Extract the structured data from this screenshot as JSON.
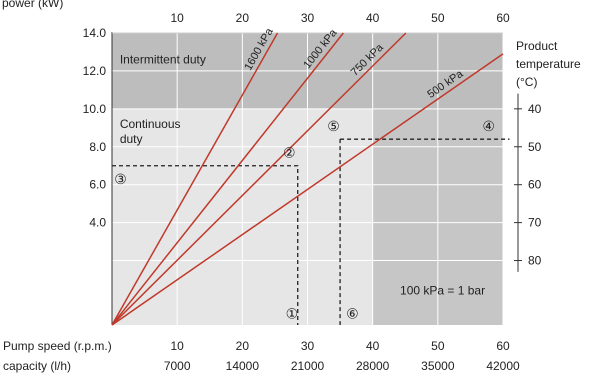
{
  "chart_data": {
    "type": "line",
    "ylabel": "power (kW)",
    "yticks": [
      4.0,
      6.0,
      8.0,
      10.0,
      12.0,
      14.0
    ],
    "ylim": [
      -1.4,
      14.0
    ],
    "top_axis_ticks": [
      10,
      20,
      30,
      40,
      50,
      60
    ],
    "xlim": [
      0,
      60
    ],
    "bottom_rows": [
      {
        "label": "Pump speed (r.p.m.)",
        "values": [
          "10",
          "20",
          "30",
          "40",
          "50",
          "60"
        ]
      },
      {
        "label": "capacity (l/h)",
        "values": [
          "7000",
          "14000",
          "21000",
          "28000",
          "35000",
          "42000"
        ]
      }
    ],
    "right_axis": {
      "label_lines": [
        "Product",
        "temperature",
        "(°C)"
      ],
      "ticks": [
        {
          "label": "40",
          "y": 10.0
        },
        {
          "label": "50",
          "y": 8.0
        },
        {
          "label": "60",
          "y": 6.0
        },
        {
          "label": "70",
          "y": 4.0
        },
        {
          "label": "80",
          "y": 2.0
        }
      ]
    },
    "regions": [
      {
        "name": "Intermittent duty",
        "label_lines": [
          "Intermittent duty"
        ],
        "y_from": 10.0,
        "y_to": 14.0,
        "color": "#bdbdbd"
      },
      {
        "name": "Continuous duty",
        "label_lines": [
          "Continuous",
          "duty"
        ],
        "y_from": 0,
        "y_to": 10.0,
        "color": "#e6e6e6"
      },
      {
        "name": "High temperature zone",
        "label_lines": [],
        "x_from": 40,
        "y_from": -1.4,
        "y_to": 10.0,
        "color": "#c6c6c6"
      }
    ],
    "series": [
      {
        "name": "1600 kPa",
        "label": "1600 kPa",
        "x": [
          0,
          25.4
        ],
        "y": [
          -1.4,
          14.0
        ],
        "color": "#c0392b"
      },
      {
        "name": "1000 kPa",
        "label": "1000 kPa",
        "x": [
          0,
          35.5
        ],
        "y": [
          -1.4,
          14.0
        ],
        "color": "#c0392b"
      },
      {
        "name": "750 kPa",
        "label": "750 kPa",
        "x": [
          0,
          45.1
        ],
        "y": [
          -1.4,
          14.0
        ],
        "color": "#c0392b"
      },
      {
        "name": "500 kPa",
        "label": "500 kPa",
        "x": [
          0,
          60.0
        ],
        "y": [
          -1.4,
          12.9
        ],
        "color": "#c0392b"
      }
    ],
    "guides": [
      {
        "points": [
          [
            0,
            7.0
          ],
          [
            28.5,
            7.0
          ],
          [
            28.5,
            -1.4
          ]
        ]
      },
      {
        "points": [
          [
            35.0,
            8.4
          ],
          [
            61.0,
            8.4
          ]
        ]
      },
      {
        "points": [
          [
            35.0,
            8.4
          ],
          [
            35.0,
            -1.4
          ]
        ]
      }
    ],
    "markers": [
      {
        "label": "①",
        "x": 27.6,
        "y": -0.8
      },
      {
        "label": "②",
        "x": 27.2,
        "y": 7.7
      },
      {
        "label": "③",
        "x": 1.3,
        "y": 6.3
      },
      {
        "label": "④",
        "x": 57.8,
        "y": 9.1
      },
      {
        "label": "⑤",
        "x": 34.0,
        "y": 9.1
      },
      {
        "label": "⑥",
        "x": 36.9,
        "y": -0.8
      }
    ],
    "note": "100 kPa = 1 bar",
    "grid": true
  }
}
